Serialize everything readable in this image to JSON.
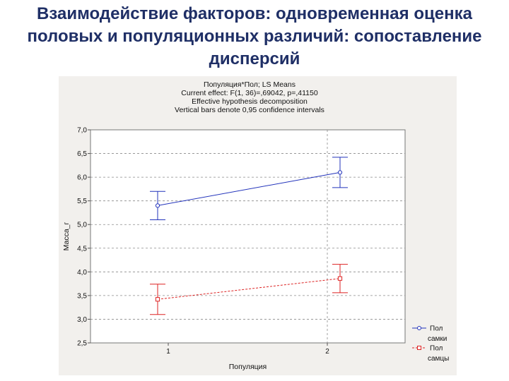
{
  "slide": {
    "title": "Взаимодействие факторов: одновременная оценка\nполовых и популяционных различий: сопоставление\nдисперсий"
  },
  "chart_data": {
    "type": "line",
    "header_lines": [
      "Популяция*Пол; LS Means",
      "Current effect: F(1, 36)=,69042, p=,41150",
      "Effective hypothesis decomposition",
      "Vertical bars denote 0,95 confidence intervals"
    ],
    "xlabel": "Популяция",
    "ylabel": "Масса_г",
    "categories": [
      "1",
      "2"
    ],
    "ylim": [
      2.5,
      7.0
    ],
    "y_ticks": [
      "7,0",
      "6,5",
      "6,0",
      "5,5",
      "5,0",
      "4,5",
      "4,0",
      "3,5",
      "3,0",
      "2,5"
    ],
    "grid": true,
    "legend_position": "bottom-right",
    "legend_title": "Пол",
    "series": [
      {
        "name": "самки",
        "color": "#2233bb",
        "marker": "circle",
        "line_style": "solid",
        "values": [
          5.4,
          6.1
        ],
        "ci_low": [
          5.1,
          5.78
        ],
        "ci_high": [
          5.7,
          6.42
        ]
      },
      {
        "name": "самцы",
        "color": "#dd2222",
        "marker": "square",
        "line_style": "dashed",
        "values": [
          3.42,
          3.86
        ],
        "ci_low": [
          3.1,
          3.56
        ],
        "ci_high": [
          3.74,
          4.16
        ]
      }
    ]
  }
}
